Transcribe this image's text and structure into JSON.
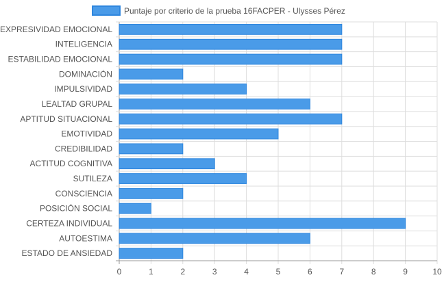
{
  "chart_data": {
    "type": "bar",
    "orientation": "horizontal",
    "title": "",
    "xlabel": "",
    "ylabel": "",
    "categories": [
      "EXPRESIVIDAD EMOCIONAL",
      "INTELIGENCIA",
      "ESTABILIDAD EMOCIONAL",
      "DOMINACIÓN",
      "IMPULSIVIDAD",
      "LEALTAD GRUPAL",
      "APTITUD SITUACIONAL",
      "EMOTIVIDAD",
      "CREDIBILIDAD",
      "ACTITUD COGNITIVA",
      "SUTILEZA",
      "CONSCIENCIA",
      "POSICIÓN SOCIAL",
      "CERTEZA INDIVIDUAL",
      "AUTOESTIMA",
      "ESTADO DE ANSIEDAD"
    ],
    "series": [
      {
        "name": "Puntaje por criterio de la prueba 16FACPER - Ulysses Pérez",
        "values": [
          7,
          7,
          7,
          2,
          4,
          6,
          7,
          5,
          2,
          3,
          4,
          2,
          1,
          9,
          6,
          2
        ]
      }
    ],
    "xlim": [
      0,
      10
    ],
    "xticks": [
      "0",
      "1",
      "2",
      "3",
      "4",
      "5",
      "6",
      "7",
      "8",
      "9",
      "10"
    ],
    "grid": true,
    "legend_position": "top-center",
    "colors": {
      "bar_fill": "#4a9be8",
      "bar_stroke": "#2e86de",
      "grid": "#dddddd",
      "axis": "#9a9a9a"
    }
  }
}
